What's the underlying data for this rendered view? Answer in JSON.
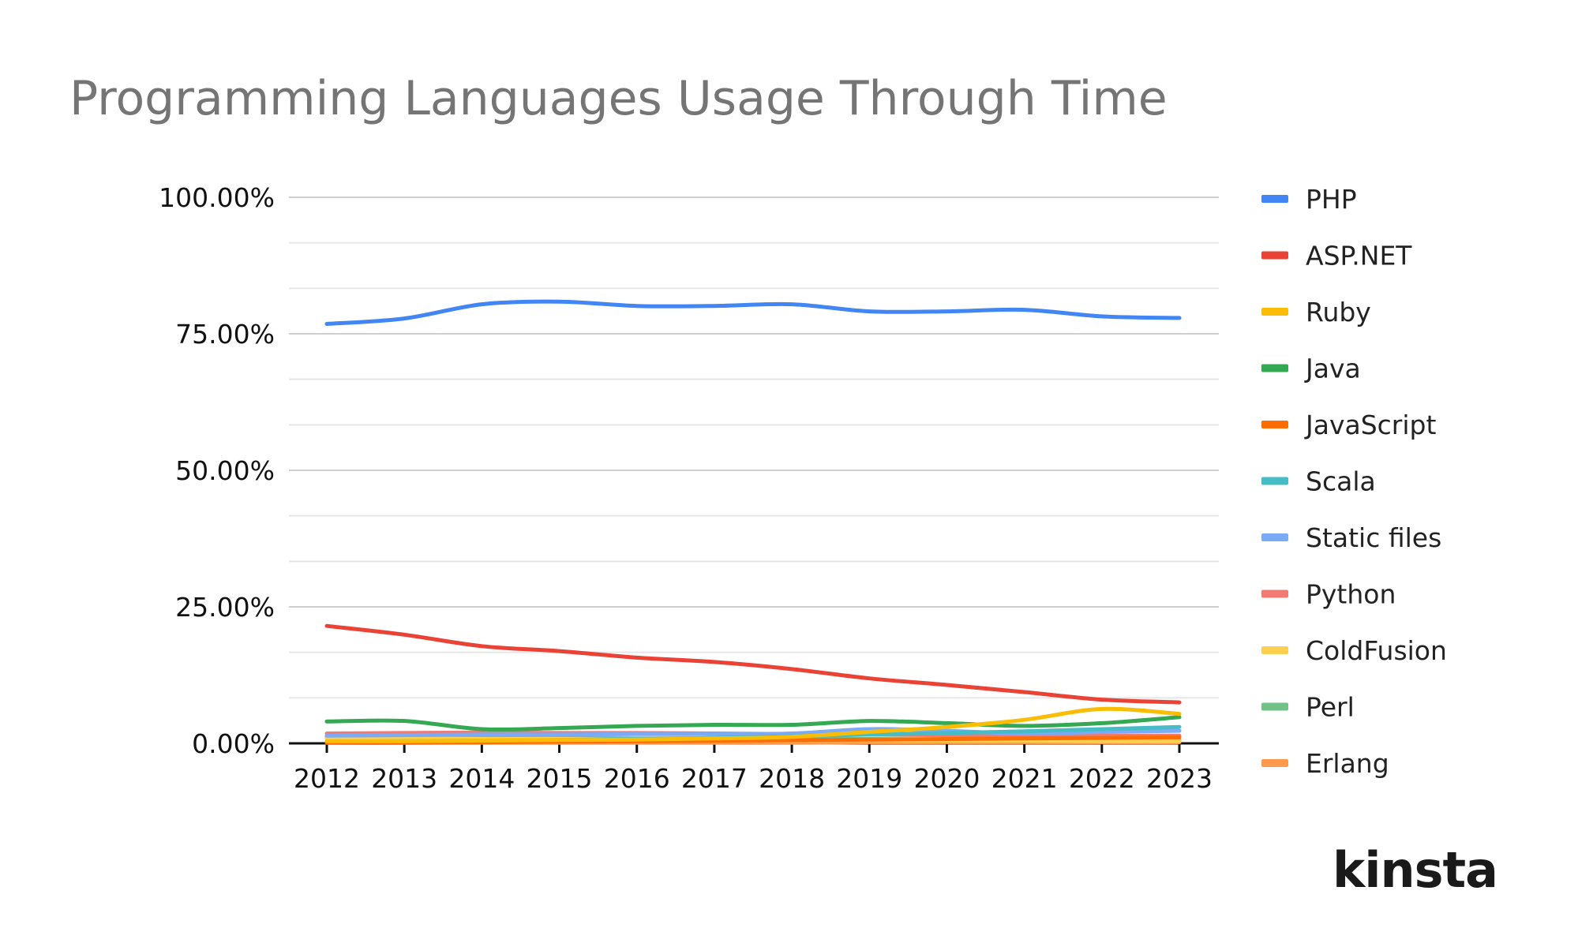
{
  "chart_data": {
    "type": "line",
    "title": "Programming Languages Usage Through Time",
    "xlabel": "",
    "ylabel": "",
    "categories": [
      "2012",
      "2013",
      "2014",
      "2015",
      "2016",
      "2017",
      "2018",
      "2019",
      "2020",
      "2021",
      "2022",
      "2023"
    ],
    "ylim": [
      0,
      100
    ],
    "yticks": [
      0,
      25,
      50,
      75,
      100
    ],
    "ytick_labels": [
      "0.00%",
      "25.00%",
      "50.00%",
      "75.00%",
      "100.00%"
    ],
    "grid": true,
    "legend_position": "right",
    "series": [
      {
        "name": "PHP",
        "color": "#4285f4",
        "values": [
          76.8,
          77.8,
          80.4,
          80.9,
          80.1,
          80.1,
          80.4,
          79.1,
          79.1,
          79.4,
          78.2,
          77.9
        ]
      },
      {
        "name": "ASP.NET",
        "color": "#ea4335",
        "values": [
          21.5,
          19.9,
          17.8,
          16.9,
          15.7,
          14.9,
          13.6,
          11.9,
          10.7,
          9.4,
          8.0,
          7.5
        ]
      },
      {
        "name": "Ruby",
        "color": "#fbbc04",
        "values": [
          0.4,
          0.4,
          0.5,
          0.6,
          0.7,
          0.9,
          1.2,
          2.1,
          3.0,
          4.3,
          6.3,
          5.4
        ]
      },
      {
        "name": "Java",
        "color": "#34a853",
        "values": [
          4.0,
          4.1,
          2.6,
          2.8,
          3.2,
          3.4,
          3.4,
          4.1,
          3.7,
          3.2,
          3.7,
          4.8
        ]
      },
      {
        "name": "JavaScript",
        "color": "#ff6d01",
        "values": [
          0.1,
          0.1,
          0.2,
          0.3,
          0.4,
          0.5,
          0.6,
          0.7,
          0.8,
          0.9,
          1.0,
          1.1
        ]
      },
      {
        "name": "Scala",
        "color": "#46bdc6",
        "values": [
          0.3,
          0.4,
          0.5,
          0.6,
          0.8,
          1.0,
          1.3,
          1.6,
          1.9,
          2.2,
          2.6,
          3.0
        ]
      },
      {
        "name": "Static files",
        "color": "#7baaf7",
        "values": [
          1.4,
          1.5,
          1.6,
          1.6,
          1.7,
          1.7,
          1.8,
          2.6,
          2.3,
          1.8,
          2.1,
          2.3
        ]
      },
      {
        "name": "Python",
        "color": "#f07b72",
        "values": [
          1.8,
          1.9,
          2.0,
          1.9,
          1.9,
          1.8,
          1.7,
          1.6,
          1.5,
          1.4,
          1.4,
          1.4
        ]
      },
      {
        "name": "ColdFusion",
        "color": "#fcd04f",
        "values": [
          0.9,
          0.9,
          0.8,
          0.8,
          0.7,
          0.7,
          0.6,
          0.6,
          0.5,
          0.5,
          0.4,
          0.4
        ]
      },
      {
        "name": "Perl",
        "color": "#71c287",
        "values": [
          1.2,
          1.1,
          1.0,
          1.0,
          0.9,
          0.9,
          0.8,
          0.8,
          0.7,
          0.7,
          0.6,
          0.6
        ]
      },
      {
        "name": "Erlang",
        "color": "#ff994d",
        "values": [
          0.1,
          0.1,
          0.1,
          0.1,
          0.1,
          0.1,
          0.1,
          0.2,
          0.2,
          0.2,
          0.2,
          0.2
        ]
      }
    ]
  },
  "brand": {
    "logo_text": "kinsta"
  }
}
